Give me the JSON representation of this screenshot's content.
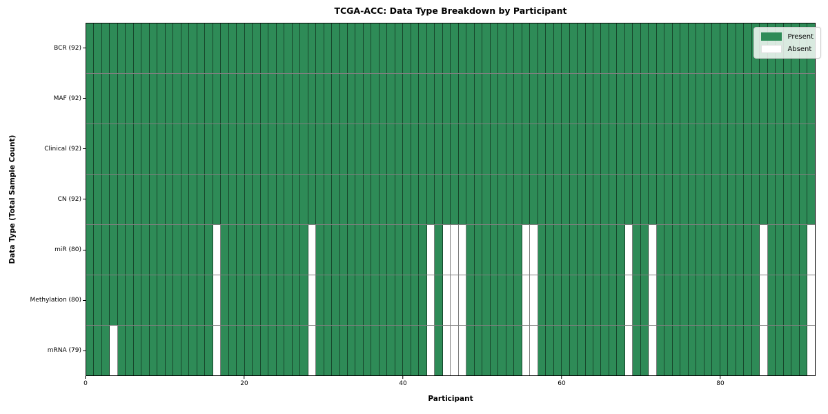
{
  "colors": {
    "present": "#2e8b57",
    "absent": "#ffffff",
    "cell_edge": "rgba(0,0,0,0.5)",
    "spine": "#000000",
    "legend_bg": "rgba(255,255,255,0.82)",
    "legend_border": "#cccccc"
  },
  "chart_data": {
    "type": "heatmap",
    "title": "TCGA-ACC: Data Type Breakdown by Participant",
    "xlabel": "Participant",
    "ylabel": "Data Type (Total Sample Count)",
    "n_participants": 92,
    "x_range": [
      0,
      92
    ],
    "x_ticks": [
      0,
      20,
      40,
      60,
      80
    ],
    "grid": false,
    "legend_position": "upper right",
    "legend": [
      "Present",
      "Absent"
    ],
    "rows": [
      {
        "label": "BCR (92)",
        "total": 92,
        "absent_participants": []
      },
      {
        "label": "MAF (92)",
        "total": 92,
        "absent_participants": []
      },
      {
        "label": "Clinical (92)",
        "total": 92,
        "absent_participants": []
      },
      {
        "label": "CN (92)",
        "total": 92,
        "absent_participants": []
      },
      {
        "label": "miR (80)",
        "total": 80,
        "absent_participants": [
          16,
          28,
          43,
          45,
          46,
          47,
          55,
          56,
          68,
          71,
          85,
          91
        ]
      },
      {
        "label": "Methylation (80)",
        "total": 80,
        "absent_participants": [
          16,
          28,
          43,
          45,
          46,
          47,
          55,
          56,
          68,
          71,
          85,
          91
        ]
      },
      {
        "label": "mRNA (79)",
        "total": 79,
        "absent_participants": [
          3,
          16,
          28,
          43,
          45,
          46,
          47,
          55,
          56,
          68,
          71,
          85,
          91
        ]
      }
    ]
  }
}
